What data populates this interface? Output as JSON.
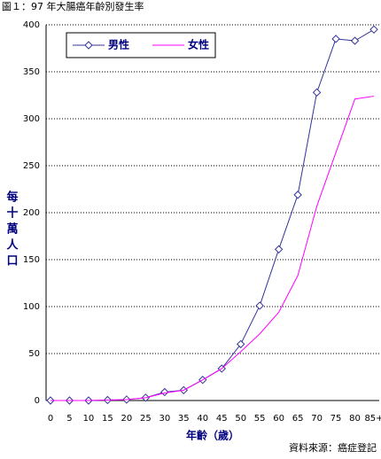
{
  "chart_data": {
    "type": "line",
    "title": "圖１：97 年大腸癌年齡別發生率",
    "y_label": "每十萬人口",
    "x_label": "年齡（歲）",
    "source": "資料來源：癌症登記",
    "categories": [
      "0",
      "5",
      "10",
      "15",
      "20",
      "25",
      "30",
      "35",
      "40",
      "45",
      "50",
      "55",
      "60",
      "65",
      "70",
      "75",
      "80",
      "85+"
    ],
    "series": [
      {
        "name": "男性",
        "color": "#333399",
        "marker": "diamond",
        "values": [
          0,
          0,
          0,
          0.5,
          1,
          3,
          9,
          11,
          22,
          34,
          60,
          101,
          161,
          219,
          328,
          385,
          383,
          395
        ]
      },
      {
        "name": "女性",
        "color": "#ff00ff",
        "values": [
          0,
          0,
          0,
          0.5,
          1,
          3,
          8,
          11,
          22,
          34,
          52,
          71,
          94,
          133,
          207,
          264,
          321,
          324
        ]
      }
    ],
    "ylim": [
      0,
      400
    ],
    "yticks": [
      0,
      50,
      100,
      150,
      200,
      250,
      300,
      350,
      400
    ],
    "grid": true
  }
}
